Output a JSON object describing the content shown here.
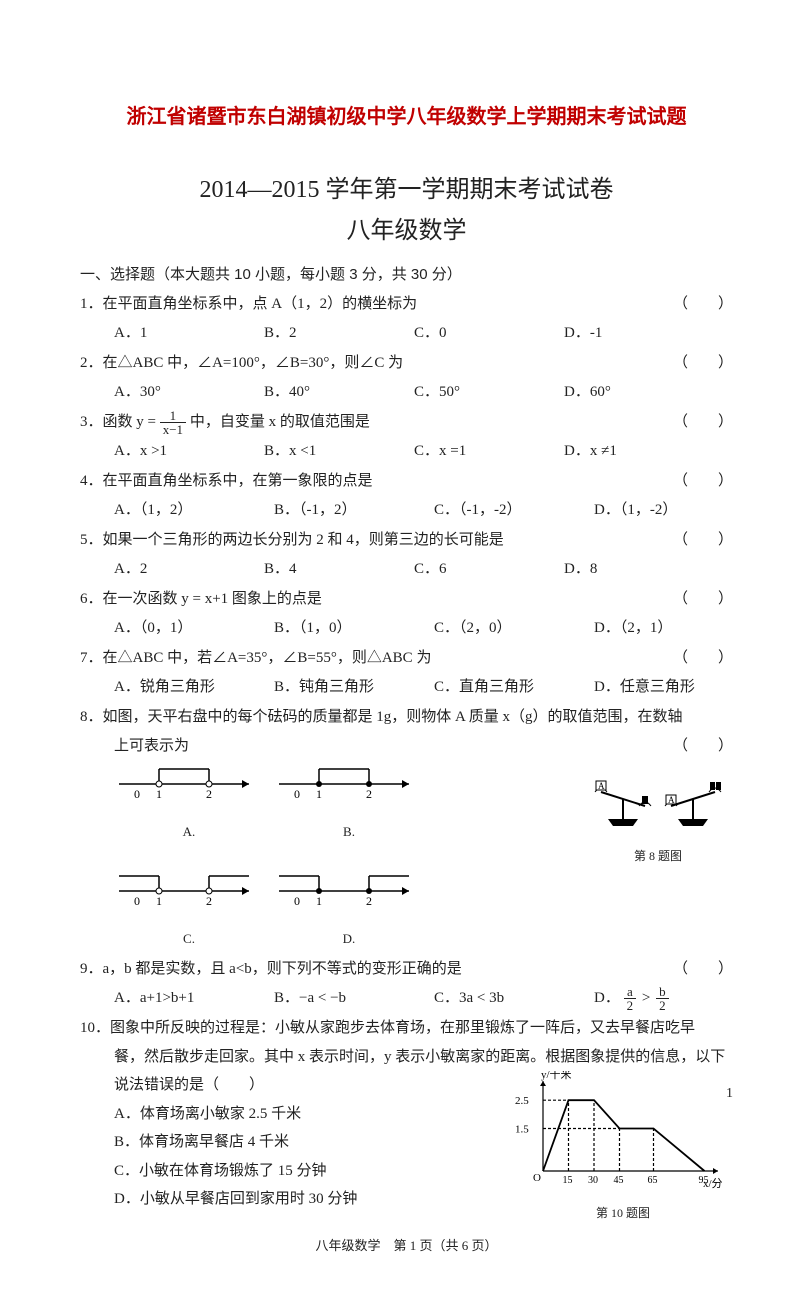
{
  "doc_title": "浙江省诸暨市东白湖镇初级中学八年级数学上学期期末考试试题",
  "exam_title": "2014—2015 学年第一学期期末考试试卷",
  "exam_subtitle": "八年级数学",
  "section1_header": "一、选择题（本大题共 10 小题，每小题 3 分，共 30 分）",
  "q1": {
    "stem": "1．在平面直角坐标系中，点 A（1，2）的横坐标为",
    "A": "A．1",
    "B": "B．2",
    "C": "C．0",
    "D": "D．-1"
  },
  "q2": {
    "stem": "2．在△ABC 中，∠A=100°，∠B=30°，则∠C 为",
    "A": "A．30°",
    "B": "B．40°",
    "C": "C．50°",
    "D": "D．60°"
  },
  "q3": {
    "stem_pre": "3．函数 y = ",
    "stem_post": " 中，自变量 x 的取值范围是",
    "frac_num": "1",
    "frac_den": "x−1",
    "A": "A．x >1",
    "B": "B．x <1",
    "C": "C．x =1",
    "D": "D．x ≠1"
  },
  "q4": {
    "stem": "4．在平面直角坐标系中，在第一象限的点是",
    "A": "A．（1，2）",
    "B": "B．（-1，2）",
    "C": "C．（-1，-2）",
    "D": "D．（1，-2）"
  },
  "q5": {
    "stem": "5．如果一个三角形的两边长分别为 2 和 4，则第三边的长可能是",
    "A": "A．2",
    "B": "B．4",
    "C": "C．6",
    "D": "D．8"
  },
  "q6": {
    "stem": "6．在一次函数 y = x+1 图象上的点是",
    "A": "A．（0，1）",
    "B": "B．（1，0）",
    "C": "C．（2，0）",
    "D": "D．（2，1）"
  },
  "q7": {
    "stem": "7．在△ABC 中，若∠A=35°，∠B=55°，则△ABC 为",
    "A": "A．锐角三角形",
    "B": "B．钝角三角形",
    "C": "C．直角三角形",
    "D": "D．任意三角形"
  },
  "q8": {
    "stem": "8．如图，天平右盘中的每个砝码的质量都是 1g，则物体 A 质量 x（g）的取值范围，在数轴",
    "stem2": "上可表示为",
    "A_label": "A.",
    "B_label": "B.",
    "C_label": "C.",
    "D_label": "D.",
    "fig_label": "第 8 题图"
  },
  "q9": {
    "stem": "9．a，b 都是实数，且 a<b，则下列不等式的变形正确的是",
    "A": "A．a+1>b+1",
    "B": "B．−a < −b",
    "C": "C．3a < 3b",
    "D_pre": "D．",
    "D_a": "a",
    "D_b": "b",
    "D_2": "2",
    "D_gt": ">"
  },
  "q10": {
    "stem1": "10．图象中所反映的过程是：小敏从家跑步去体育场，在那里锻炼了一阵后，又去早餐店吃早",
    "stem2": "餐，然后散步走回家。其中 x 表示时间，y 表示小敏离家的距离。根据图象提供的信息，以下",
    "stem3": "说法错误的是（　　）",
    "A": "A．体育场离小敏家 2.5 千米",
    "B": "B．体育场离早餐店 4 千米",
    "C": "C．小敏在体育场锻炼了 15 分钟",
    "D": "D．小敏从早餐店回到家用时 30 分钟",
    "chart": {
      "ylabel": "y/千米",
      "xlabel": "x/分",
      "yticks": [
        "2.5",
        "1.5"
      ],
      "xticks": [
        "15",
        "30",
        "45",
        "65",
        "95"
      ],
      "caption": "第 10 题图",
      "points": [
        [
          0,
          0
        ],
        [
          15,
          2.5
        ],
        [
          30,
          2.5
        ],
        [
          45,
          1.5
        ],
        [
          65,
          1.5
        ],
        [
          95,
          0
        ]
      ],
      "line_color": "#000000"
    }
  },
  "footer": "八年级数学　第 1 页（共 6 页）",
  "page_num": "1",
  "paren": "（　　）"
}
